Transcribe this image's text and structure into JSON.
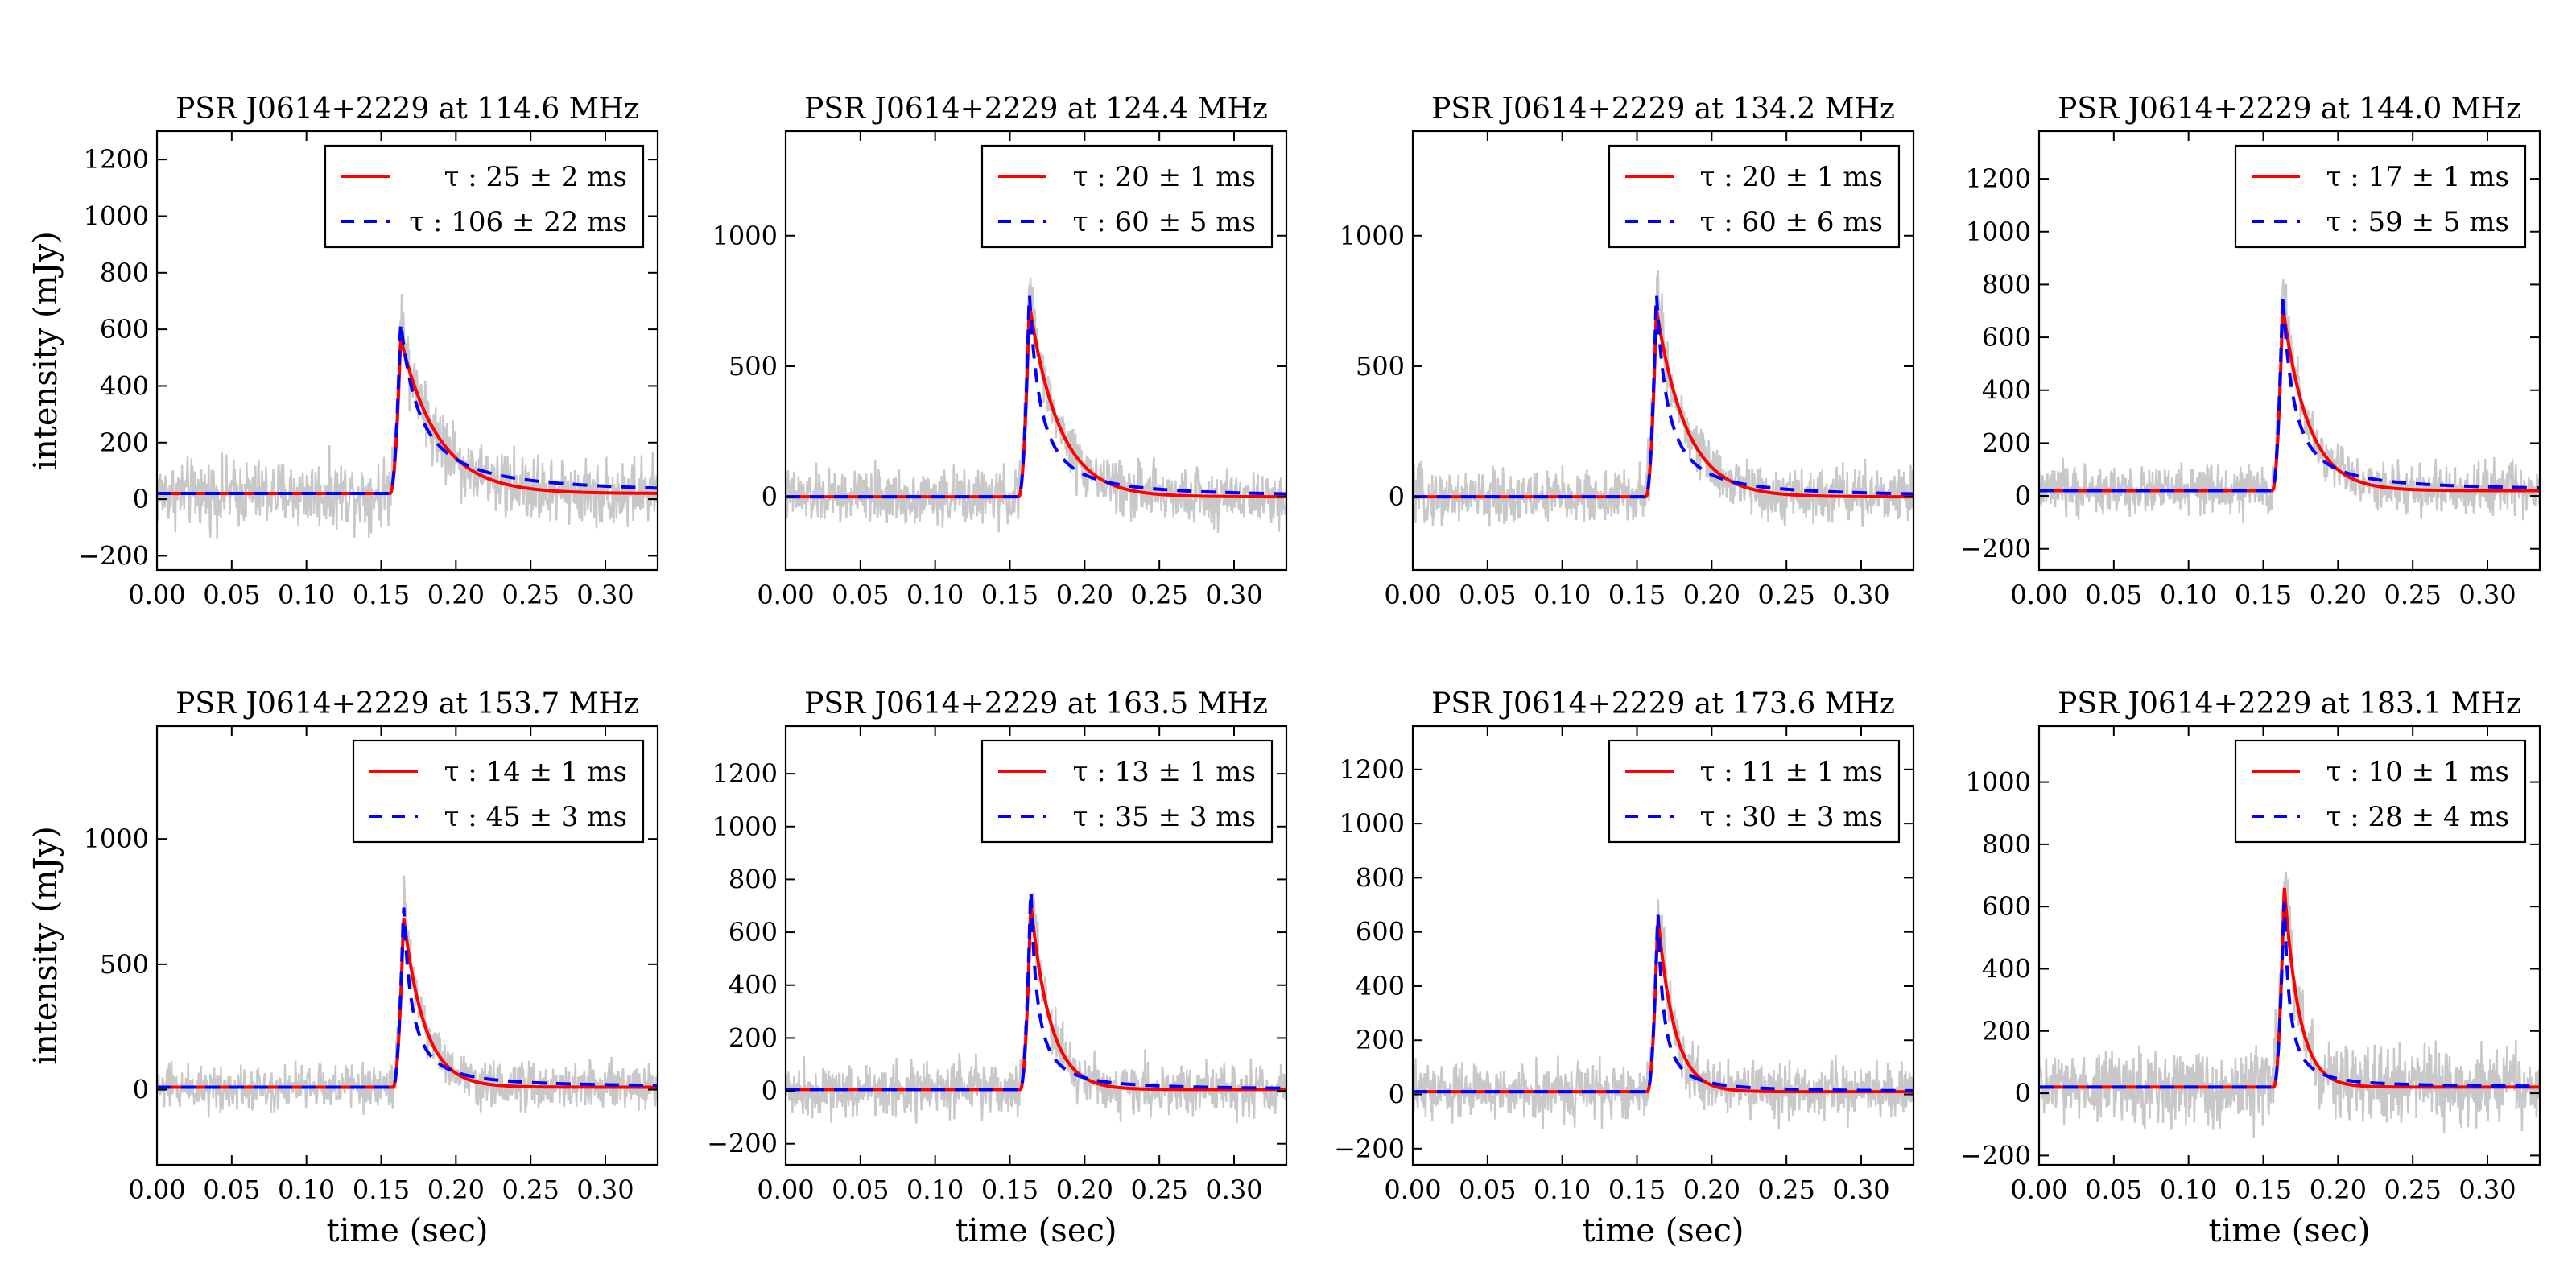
{
  "figure": {
    "xlabel": "time (sec)",
    "ylabel": "intensity (mJy)"
  },
  "colors": {
    "data": "#c8c8c8",
    "fit_exp": "#ff0000",
    "fit_pow": "#0000ff",
    "axis": "#000000"
  },
  "chart_data": [
    {
      "type": "line",
      "title": "PSR J0614+2229 at 114.6 MHz",
      "xlabel": "",
      "ylabel": "intensity (mJy)",
      "xlim": [
        0,
        0.335
      ],
      "ylim": [
        -250,
        1300
      ],
      "xticks": [
        0.0,
        0.05,
        0.1,
        0.15,
        0.2,
        0.25,
        0.3
      ],
      "xtick_labels": [
        "0.00",
        "0.05",
        "0.10",
        "0.15",
        "0.20",
        "0.25",
        "0.30"
      ],
      "yticks": [
        -200,
        0,
        200,
        400,
        600,
        800,
        1000,
        1200
      ],
      "ytick_labels": [
        "−200",
        "0",
        "200",
        "400",
        "600",
        "800",
        "1000",
        "1200"
      ],
      "baseline": 20,
      "onset": 0.156,
      "noise": 90,
      "series": [
        {
          "name": "τ : 25 ± 2 ms",
          "kind": "exp",
          "peak": 570,
          "tau_ms": 25
        },
        {
          "name": "τ : 106 ± 22 ms",
          "kind": "pow",
          "peak": 630,
          "tau_ms": 106
        }
      ]
    },
    {
      "type": "line",
      "title": "PSR J0614+2229 at 124.4 MHz",
      "xlabel": "",
      "ylabel": "",
      "xlim": [
        0,
        0.335
      ],
      "ylim": [
        -280,
        1400
      ],
      "xticks": [
        0.0,
        0.05,
        0.1,
        0.15,
        0.2,
        0.25,
        0.3
      ],
      "xtick_labels": [
        "0.00",
        "0.05",
        "0.10",
        "0.15",
        "0.20",
        "0.25",
        "0.30"
      ],
      "yticks": [
        0,
        500,
        1000
      ],
      "ytick_labels": [
        "0",
        "500",
        "1000"
      ],
      "baseline": 0,
      "onset": 0.156,
      "noise": 80,
      "series": [
        {
          "name": "τ : 20 ± 1 ms",
          "kind": "exp",
          "peak": 740,
          "tau_ms": 20
        },
        {
          "name": "τ : 60 ± 5 ms",
          "kind": "pow",
          "peak": 790,
          "tau_ms": 60
        }
      ]
    },
    {
      "type": "line",
      "title": "PSR J0614+2229 at 134.2 MHz",
      "xlabel": "",
      "ylabel": "",
      "xlim": [
        0,
        0.335
      ],
      "ylim": [
        -280,
        1400
      ],
      "xticks": [
        0.0,
        0.05,
        0.1,
        0.15,
        0.2,
        0.25,
        0.3
      ],
      "xtick_labels": [
        "0.00",
        "0.05",
        "0.10",
        "0.15",
        "0.20",
        "0.25",
        "0.30"
      ],
      "yticks": [
        0,
        500,
        1000
      ],
      "ytick_labels": [
        "0",
        "500",
        "1000"
      ],
      "baseline": 0,
      "onset": 0.156,
      "noise": 80,
      "series": [
        {
          "name": "τ : 20 ± 1 ms",
          "kind": "exp",
          "peak": 720,
          "tau_ms": 20
        },
        {
          "name": "τ : 60 ± 6 ms",
          "kind": "pow",
          "peak": 790,
          "tau_ms": 60
        }
      ]
    },
    {
      "type": "line",
      "title": "PSR J0614+2229 at 144.0 MHz",
      "xlabel": "",
      "ylabel": "",
      "xlim": [
        0,
        0.335
      ],
      "ylim": [
        -280,
        1380
      ],
      "xticks": [
        0.0,
        0.05,
        0.1,
        0.15,
        0.2,
        0.25,
        0.3
      ],
      "xtick_labels": [
        "0.00",
        "0.05",
        "0.10",
        "0.15",
        "0.20",
        "0.25",
        "0.30"
      ],
      "yticks": [
        -200,
        0,
        200,
        400,
        600,
        800,
        1000,
        1200
      ],
      "ytick_labels": [
        "−200",
        "0",
        "200",
        "400",
        "600",
        "800",
        "1000",
        "1200"
      ],
      "baseline": 20,
      "onset": 0.156,
      "noise": 70,
      "series": [
        {
          "name": "τ : 17 ± 1 ms",
          "kind": "exp",
          "peak": 720,
          "tau_ms": 17
        },
        {
          "name": "τ : 59 ± 5 ms",
          "kind": "pow",
          "peak": 780,
          "tau_ms": 59
        }
      ]
    },
    {
      "type": "line",
      "title": "PSR J0614+2229 at 153.7 MHz",
      "xlabel": "time (sec)",
      "ylabel": "intensity (mJy)",
      "xlim": [
        0,
        0.335
      ],
      "ylim": [
        -300,
        1450
      ],
      "xticks": [
        0.0,
        0.05,
        0.1,
        0.15,
        0.2,
        0.25,
        0.3
      ],
      "xtick_labels": [
        "0.00",
        "0.05",
        "0.10",
        "0.15",
        "0.20",
        "0.25",
        "0.30"
      ],
      "yticks": [
        0,
        500,
        1000
      ],
      "ytick_labels": [
        "0",
        "500",
        "1000"
      ],
      "baseline": 10,
      "onset": 0.158,
      "noise": 70,
      "series": [
        {
          "name": "τ : 14 ± 1 ms",
          "kind": "exp",
          "peak": 690,
          "tau_ms": 14
        },
        {
          "name": "τ : 45 ± 3 ms",
          "kind": "pow",
          "peak": 740,
          "tau_ms": 45
        }
      ]
    },
    {
      "type": "line",
      "title": "PSR J0614+2229 at 163.5 MHz",
      "xlabel": "time (sec)",
      "ylabel": "",
      "xlim": [
        0,
        0.335
      ],
      "ylim": [
        -280,
        1380
      ],
      "xticks": [
        0.0,
        0.05,
        0.1,
        0.15,
        0.2,
        0.25,
        0.3
      ],
      "xtick_labels": [
        "0.00",
        "0.05",
        "0.10",
        "0.15",
        "0.20",
        "0.25",
        "0.30"
      ],
      "yticks": [
        -200,
        0,
        200,
        400,
        600,
        800,
        1000,
        1200
      ],
      "ytick_labels": [
        "−200",
        "0",
        "200",
        "400",
        "600",
        "800",
        "1000",
        "1200"
      ],
      "baseline": 5,
      "onset": 0.157,
      "noise": 80,
      "series": [
        {
          "name": "τ : 13 ± 1 ms",
          "kind": "exp",
          "peak": 710,
          "tau_ms": 13
        },
        {
          "name": "τ : 35 ± 3 ms",
          "kind": "pow",
          "peak": 780,
          "tau_ms": 35
        }
      ]
    },
    {
      "type": "line",
      "title": "PSR J0614+2229 at 173.6 MHz",
      "xlabel": "time (sec)",
      "ylabel": "",
      "xlim": [
        0,
        0.335
      ],
      "ylim": [
        -260,
        1360
      ],
      "xticks": [
        0.0,
        0.05,
        0.1,
        0.15,
        0.2,
        0.25,
        0.3
      ],
      "xtick_labels": [
        "0.00",
        "0.05",
        "0.10",
        "0.15",
        "0.20",
        "0.25",
        "0.30"
      ],
      "yticks": [
        -200,
        0,
        200,
        400,
        600,
        800,
        1000,
        1200
      ],
      "ytick_labels": [
        "−200",
        "0",
        "200",
        "400",
        "600",
        "800",
        "1000",
        "1200"
      ],
      "baseline": 10,
      "onset": 0.157,
      "noise": 80,
      "series": [
        {
          "name": "τ : 11 ± 1 ms",
          "kind": "exp",
          "peak": 660,
          "tau_ms": 11
        },
        {
          "name": "τ : 30 ± 3 ms",
          "kind": "pow",
          "peak": 690,
          "tau_ms": 30
        }
      ]
    },
    {
      "type": "line",
      "title": "PSR J0614+2229 at 183.1 MHz",
      "xlabel": "time (sec)",
      "ylabel": "",
      "xlim": [
        0,
        0.335
      ],
      "ylim": [
        -230,
        1180
      ],
      "xticks": [
        0.0,
        0.05,
        0.1,
        0.15,
        0.2,
        0.25,
        0.3
      ],
      "xtick_labels": [
        "0.00",
        "0.05",
        "0.10",
        "0.15",
        "0.20",
        "0.25",
        "0.30"
      ],
      "yticks": [
        -200,
        0,
        200,
        400,
        600,
        800,
        1000
      ],
      "ytick_labels": [
        "−200",
        "0",
        "200",
        "400",
        "600",
        "800",
        "1000"
      ],
      "baseline": 20,
      "onset": 0.157,
      "noise": 90,
      "series": [
        {
          "name": "τ : 10 ± 1 ms",
          "kind": "exp",
          "peak": 670,
          "tau_ms": 10
        },
        {
          "name": "τ : 28 ± 4 ms",
          "kind": "pow",
          "peak": 640,
          "tau_ms": 28
        }
      ]
    }
  ]
}
